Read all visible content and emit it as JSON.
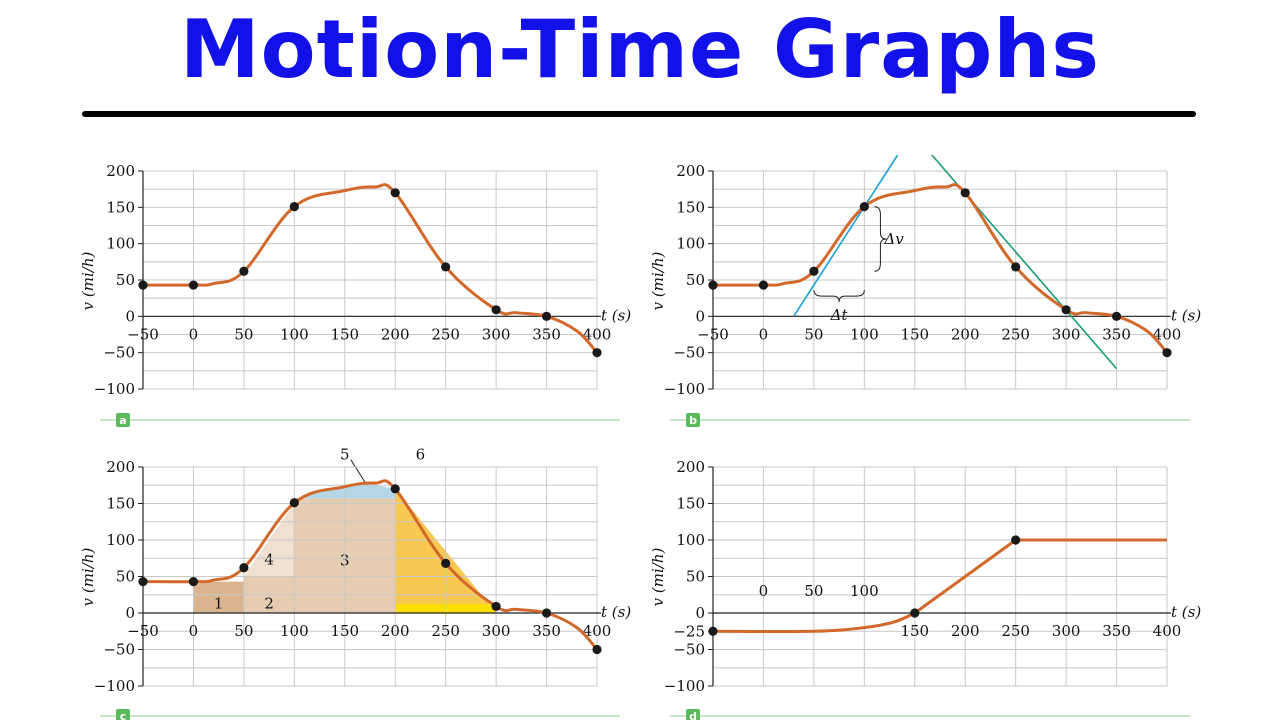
{
  "page_title": "Motion-Time Graphs",
  "colors": {
    "title": "#1111e8",
    "curve": "#d2692b",
    "tangent_blue": "#1a9fd6",
    "tangent_green": "#169c77",
    "point": "#1a1a1a",
    "grid": "#c8c8c8",
    "panel_tag": "#5cb85c",
    "panel_line": "#9fd89f",
    "area_dark": "#d9b48f",
    "area_mid": "#e6cdb2",
    "area_light": "#efe0d0",
    "area_blue": "#b4d6e6",
    "area_yellow": "#f7c23e",
    "area_yellow_bright": "#fde000"
  },
  "chart_data": [
    {
      "id": "a",
      "type": "line",
      "panel_label": "a",
      "xlabel": "t (s)",
      "ylabel": "v (mi/h)",
      "xlim": [
        -50,
        400
      ],
      "ylim": [
        -100,
        200
      ],
      "x_ticks": [
        -50,
        0,
        50,
        100,
        150,
        200,
        250,
        300,
        350,
        400
      ],
      "y_ticks": [
        -100,
        -50,
        0,
        50,
        100,
        150,
        200
      ],
      "grid": true,
      "series": [
        {
          "curve": [
            [
              -50,
              43
            ],
            [
              0,
              43
            ],
            [
              20,
              45
            ],
            [
              50,
              62
            ],
            [
              100,
              151
            ],
            [
              150,
              173
            ],
            [
              180,
              178
            ],
            [
              200,
              170
            ],
            [
              250,
              68
            ],
            [
              300,
              9
            ],
            [
              320,
              5
            ],
            [
              350,
              0
            ],
            [
              380,
              -20
            ],
            [
              400,
              -50
            ]
          ],
          "points": [
            [
              -50,
              43
            ],
            [
              0,
              43
            ],
            [
              50,
              62
            ],
            [
              100,
              151
            ],
            [
              200,
              170
            ],
            [
              250,
              68
            ],
            [
              300,
              9
            ],
            [
              350,
              0
            ],
            [
              400,
              -50
            ]
          ]
        }
      ]
    },
    {
      "id": "b",
      "type": "line",
      "panel_label": "b",
      "xlabel": "t (s)",
      "ylabel": "v (mi/h)",
      "xlim": [
        -50,
        400
      ],
      "ylim": [
        -100,
        200
      ],
      "x_ticks": [
        -50,
        0,
        50,
        100,
        150,
        200,
        250,
        300,
        350,
        400
      ],
      "y_ticks": [
        -100,
        -50,
        0,
        50,
        100,
        150,
        200
      ],
      "grid": true,
      "series": [
        {
          "curve": [
            [
              -50,
              43
            ],
            [
              0,
              43
            ],
            [
              20,
              45
            ],
            [
              50,
              62
            ],
            [
              100,
              151
            ],
            [
              150,
              173
            ],
            [
              180,
              178
            ],
            [
              200,
              170
            ],
            [
              250,
              68
            ],
            [
              300,
              9
            ],
            [
              320,
              5
            ],
            [
              350,
              0
            ],
            [
              380,
              -20
            ],
            [
              400,
              -50
            ]
          ],
          "points": [
            [
              -50,
              43
            ],
            [
              0,
              43
            ],
            [
              50,
              62
            ],
            [
              100,
              151
            ],
            [
              200,
              170
            ],
            [
              250,
              68
            ],
            [
              300,
              9
            ],
            [
              350,
              0
            ],
            [
              400,
              -50
            ]
          ]
        }
      ],
      "tangents": [
        {
          "from": [
            30,
            0
          ],
          "to": [
            133,
            222
          ],
          "color": "tangent_blue"
        },
        {
          "from": [
            167,
            222
          ],
          "to": [
            350,
            -72
          ],
          "color": "tangent_green"
        }
      ],
      "annotations": {
        "delta_v": "Δv",
        "delta_t": "Δt",
        "delta_v_span": [
          [
            110,
            62
          ],
          [
            110,
            151
          ]
        ],
        "delta_t_span": [
          [
            50,
            25
          ],
          [
            100,
            25
          ]
        ]
      }
    },
    {
      "id": "c",
      "type": "area",
      "panel_label": "c",
      "xlabel": "t (s)",
      "ylabel": "v (mi/h)",
      "xlim": [
        -50,
        400
      ],
      "ylim": [
        -100,
        200
      ],
      "x_ticks": [
        -50,
        0,
        50,
        100,
        150,
        200,
        250,
        300,
        350,
        400
      ],
      "y_ticks": [
        -100,
        -50,
        0,
        50,
        100,
        150,
        200
      ],
      "grid": true,
      "series": [
        {
          "curve": [
            [
              -50,
              43
            ],
            [
              0,
              43
            ],
            [
              20,
              45
            ],
            [
              50,
              62
            ],
            [
              100,
              151
            ],
            [
              150,
              173
            ],
            [
              180,
              178
            ],
            [
              200,
              170
            ],
            [
              250,
              68
            ],
            [
              300,
              9
            ],
            [
              320,
              5
            ],
            [
              350,
              0
            ],
            [
              380,
              -20
            ],
            [
              400,
              -50
            ]
          ],
          "points": [
            [
              -50,
              43
            ],
            [
              0,
              43
            ],
            [
              50,
              62
            ],
            [
              100,
              151
            ],
            [
              200,
              170
            ],
            [
              250,
              68
            ],
            [
              300,
              9
            ],
            [
              350,
              0
            ],
            [
              400,
              -50
            ]
          ]
        }
      ],
      "regions": [
        {
          "label": "1",
          "x": [
            0,
            50
          ],
          "y": [
            0,
            43
          ],
          "kind": "rect",
          "color": "area_dark"
        },
        {
          "label": "2",
          "x": [
            50,
            100
          ],
          "y": [
            0,
            50
          ],
          "kind": "rect",
          "color": "area_mid"
        },
        {
          "label": "4",
          "x": [
            50,
            100
          ],
          "y": [
            50,
            151
          ],
          "kind": "triangle",
          "color": "area_light"
        },
        {
          "label": "3",
          "x": [
            100,
            200
          ],
          "y": [
            0,
            157
          ],
          "kind": "rect",
          "color": "area_mid"
        },
        {
          "label": "5",
          "x": [
            100,
            200
          ],
          "y": [
            157,
            178
          ],
          "kind": "cap",
          "color": "area_blue"
        },
        {
          "label": "6",
          "x": [
            200,
            300
          ],
          "y": [
            0,
            170
          ],
          "kind": "triangle",
          "color": "area_yellow"
        }
      ]
    },
    {
      "id": "d",
      "type": "line",
      "panel_label": "d",
      "xlabel": "t (s)",
      "ylabel": "v (mi/h)",
      "xlim": [
        -50,
        400
      ],
      "ylim": [
        -100,
        200
      ],
      "x_ticks_upper": [
        0,
        50,
        100
      ],
      "x_ticks_lower": [
        150,
        200,
        250,
        300,
        350,
        400
      ],
      "y_ticks": [
        -100,
        -50,
        -25,
        0,
        50,
        100,
        150,
        200
      ],
      "grid": true,
      "series": [
        {
          "curve": [
            [
              -50,
              -25
            ],
            [
              50,
              -25
            ],
            [
              100,
              -20
            ],
            [
              130,
              -12
            ],
            [
              150,
              0
            ],
            [
              250,
              100
            ],
            [
              400,
              100
            ]
          ],
          "points": [
            [
              -50,
              -25
            ],
            [
              150,
              0
            ],
            [
              250,
              100
            ]
          ]
        }
      ]
    }
  ]
}
